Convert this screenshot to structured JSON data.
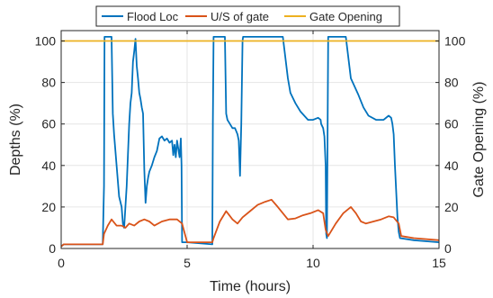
{
  "chart_data": {
    "type": "line",
    "title": "",
    "xlabel": "Time (hours)",
    "ylabel_left": "Depths (%)",
    "ylabel_right": "Gate Opening (%)",
    "xlim": [
      0,
      15
    ],
    "ylim_left": [
      0,
      105
    ],
    "ylim_right": [
      0,
      105
    ],
    "x_ticks": [
      "0",
      "5",
      "10",
      "15"
    ],
    "y_ticks_left": [
      "0",
      "20",
      "40",
      "60",
      "80",
      "100"
    ],
    "y_ticks_right": [
      "0",
      "20",
      "40",
      "60",
      "80",
      "100"
    ],
    "grid": true,
    "legend_position": "top",
    "series": [
      {
        "name": "Flood Loc",
        "color": "#0072BD",
        "axis": "left",
        "x": [
          0,
          0.1,
          1.65,
          1.7,
          1.72,
          2.0,
          2.05,
          2.1,
          2.2,
          2.3,
          2.4,
          2.45,
          2.5,
          2.55,
          2.6,
          2.65,
          2.7,
          2.75,
          2.8,
          2.85,
          2.9,
          2.95,
          3.0,
          3.05,
          3.1,
          3.15,
          3.2,
          3.25,
          3.3,
          3.35,
          3.4,
          3.45,
          3.5,
          3.6,
          3.7,
          3.8,
          3.9,
          4.0,
          4.1,
          4.2,
          4.3,
          4.4,
          4.45,
          4.5,
          4.55,
          4.6,
          4.7,
          4.75,
          4.78,
          4.8,
          5.0,
          6.0,
          6.02,
          6.05,
          6.5,
          6.55,
          6.6,
          6.7,
          6.8,
          6.9,
          7.0,
          7.05,
          7.1,
          7.15,
          7.2,
          7.22,
          8.0,
          8.5,
          8.8,
          9.0,
          9.1,
          9.3,
          9.5,
          9.8,
          10.0,
          10.2,
          10.3,
          10.32,
          10.4,
          10.45,
          10.5,
          10.52,
          10.55,
          10.6,
          11.3,
          11.5,
          11.8,
          12.0,
          12.2,
          12.5,
          12.8,
          13.0,
          13.1,
          13.15,
          13.2,
          13.25,
          13.35,
          13.4,
          13.45,
          14.0,
          15.0
        ],
        "values": [
          1,
          2,
          2,
          30,
          102,
          102,
          65,
          55,
          40,
          25,
          20,
          12,
          10,
          20,
          30,
          45,
          60,
          70,
          75,
          90,
          95,
          101,
          88,
          82,
          75,
          72,
          68,
          65,
          38,
          22,
          30,
          34,
          37,
          40,
          44,
          47,
          53,
          54,
          52,
          53,
          51,
          52,
          45,
          50,
          44,
          52,
          44,
          53,
          40,
          3,
          3,
          2,
          60,
          102,
          102,
          65,
          62,
          60,
          58,
          58,
          55,
          52,
          35,
          60,
          100,
          102,
          102,
          102,
          102,
          82,
          75,
          70,
          66,
          62,
          62,
          63,
          62,
          60,
          58,
          54,
          40,
          7,
          5,
          102,
          102,
          82,
          74,
          68,
          64,
          62,
          62,
          64,
          63,
          60,
          55,
          40,
          15,
          8,
          5,
          4,
          3
        ]
      },
      {
        "name": "U/S of gate",
        "color": "#D95319",
        "axis": "left",
        "x": [
          0,
          0.1,
          1.65,
          1.7,
          1.85,
          2.0,
          2.2,
          2.4,
          2.55,
          2.7,
          2.9,
          3.1,
          3.3,
          3.5,
          3.7,
          4.0,
          4.3,
          4.6,
          4.8,
          5.0,
          6.0,
          6.05,
          6.3,
          6.55,
          6.8,
          7.0,
          7.2,
          7.5,
          7.8,
          8.1,
          8.35,
          8.6,
          8.8,
          9.0,
          9.3,
          9.6,
          9.9,
          10.2,
          10.4,
          10.5,
          10.6,
          10.9,
          11.2,
          11.5,
          11.7,
          11.9,
          12.1,
          12.4,
          12.7,
          13.0,
          13.2,
          13.4,
          13.5,
          14.0,
          15.0
        ],
        "values": [
          1,
          2,
          2,
          7,
          11,
          14,
          11,
          11,
          10,
          12,
          11,
          13,
          14,
          13,
          11,
          13,
          14,
          14,
          12,
          3,
          3,
          5,
          13,
          18,
          14,
          12,
          15,
          18,
          21,
          22.5,
          23.5,
          20,
          17,
          14,
          14.5,
          16,
          17,
          18.5,
          17,
          9,
          6,
          12,
          17,
          20,
          17,
          13,
          12,
          13,
          14,
          15.5,
          15,
          12,
          6,
          5,
          4
        ]
      },
      {
        "name": "Gate Opening",
        "color": "#EDB120",
        "axis": "right",
        "x": [
          0,
          15
        ],
        "values": [
          100,
          100
        ]
      }
    ]
  }
}
